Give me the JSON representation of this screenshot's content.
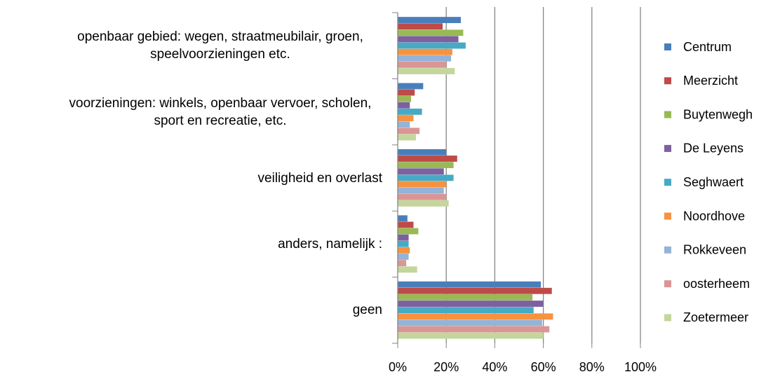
{
  "chart_data": {
    "type": "bar",
    "orientation": "horizontal",
    "categories": [
      "openbaar gebied: wegen, straatmeubilair, groen, speelvoorzieningen etc.",
      "voorzieningen: winkels, openbaar vervoer, scholen, sport en recreatie, etc.",
      "veiligheid en overlast",
      "anders, namelijk :",
      "geen"
    ],
    "series": [
      {
        "name": "Centrum",
        "color": "#4a7ebb",
        "values": [
          26,
          10.5,
          20,
          4,
          59
        ]
      },
      {
        "name": "Meerzicht",
        "color": "#be4b48",
        "values": [
          18.5,
          7,
          24.5,
          6.5,
          63.5
        ]
      },
      {
        "name": "Buytenwegh",
        "color": "#98b954",
        "values": [
          27,
          5.5,
          23,
          8.5,
          55.5
        ]
      },
      {
        "name": "De Leyens",
        "color": "#7d60a0",
        "values": [
          25,
          5,
          19,
          4.5,
          60
        ]
      },
      {
        "name": "Seghwaert",
        "color": "#46aac5",
        "values": [
          28,
          10,
          23,
          4.5,
          56
        ]
      },
      {
        "name": "Noordhove",
        "color": "#f69240",
        "values": [
          22.5,
          6.5,
          20,
          5,
          64
        ]
      },
      {
        "name": "Rokkeveen",
        "color": "#95b3d7",
        "values": [
          22,
          5,
          19,
          4.5,
          59.5
        ]
      },
      {
        "name": "oosterheem",
        "color": "#d99694",
        "values": [
          20,
          9,
          20,
          3.5,
          62.5
        ]
      },
      {
        "name": "Zoetermeer",
        "color": "#c3d69b",
        "values": [
          23.5,
          7.5,
          21,
          8,
          60
        ]
      }
    ],
    "xlim": [
      0,
      100
    ],
    "xticks": [
      {
        "value": 0,
        "label": "0%"
      },
      {
        "value": 20,
        "label": "20%"
      },
      {
        "value": 40,
        "label": "40%"
      },
      {
        "value": 60,
        "label": "60%"
      },
      {
        "value": 80,
        "label": "80%"
      },
      {
        "value": 100,
        "label": "100%"
      }
    ],
    "grid": true,
    "legend": "right"
  }
}
